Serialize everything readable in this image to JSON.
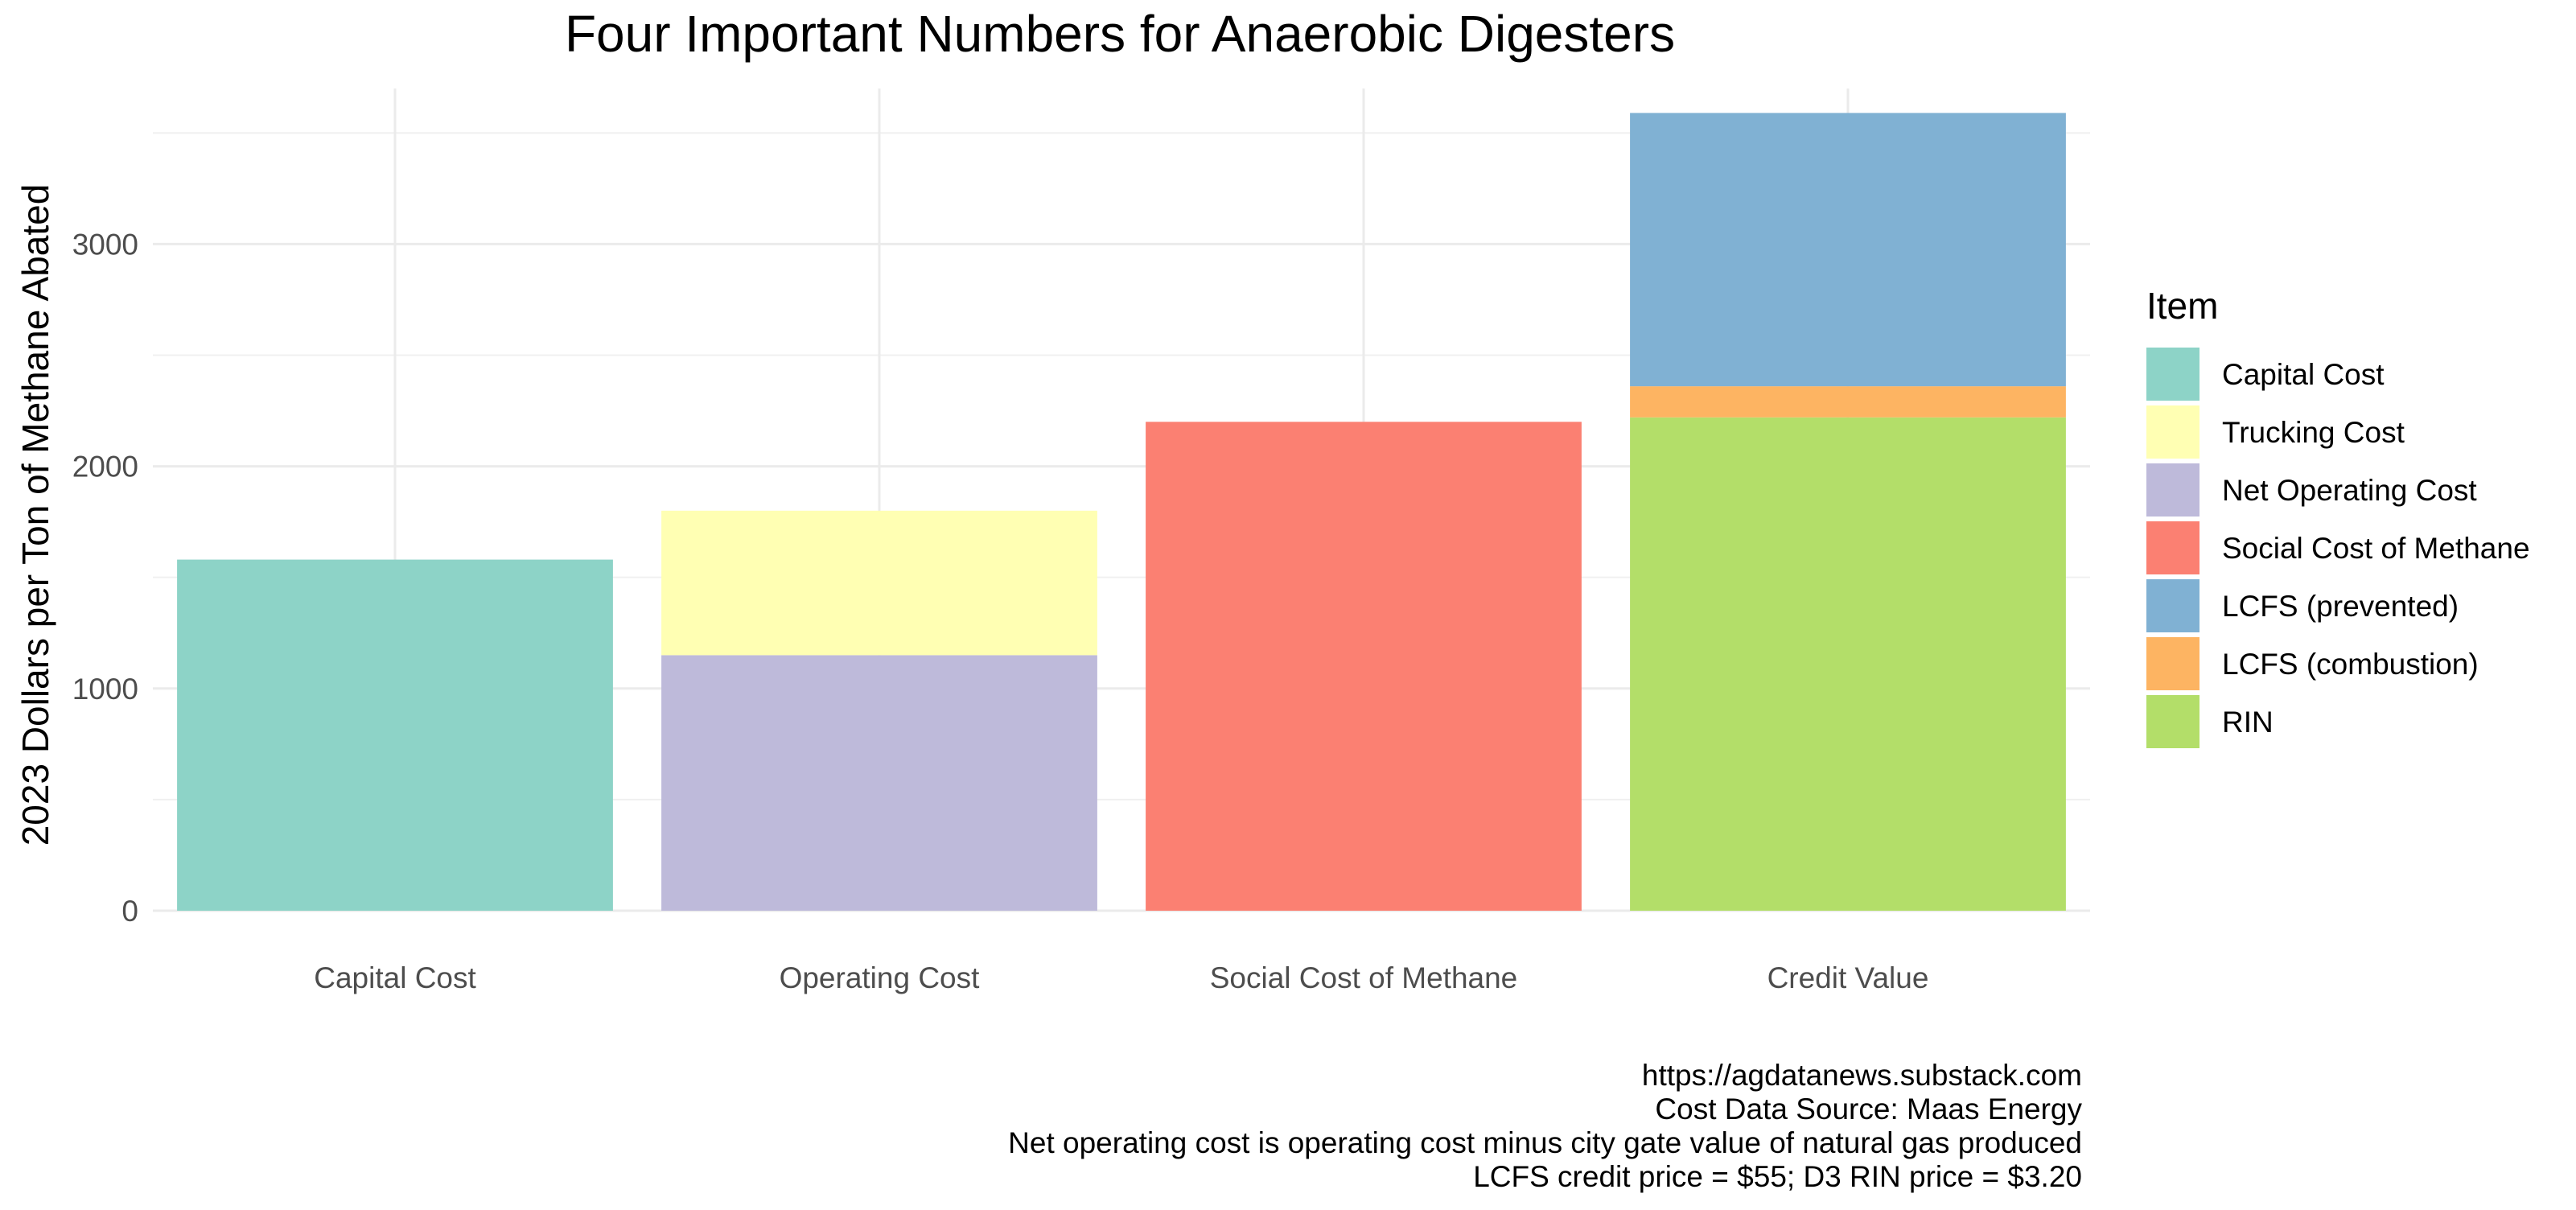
{
  "chart_data": {
    "type": "bar",
    "stacked": true,
    "title": "Four Important Numbers for Anaerobic Digesters",
    "xlabel": "",
    "ylabel": "2023 Dollars per Ton of Methane Abated",
    "categories": [
      "Capital Cost",
      "Operating Cost",
      "Social Cost of Methane",
      "Credit Value"
    ],
    "ylim": [
      0,
      3700
    ],
    "yticks": [
      0,
      1000,
      2000,
      3000
    ],
    "grid": true,
    "legend": {
      "title": "Item",
      "position": "right",
      "entries": [
        "Capital Cost",
        "Trucking Cost",
        "Net Operating Cost",
        "Social Cost of Methane",
        "LCFS (prevented)",
        "LCFS (combustion)",
        "RIN"
      ]
    },
    "series": [
      {
        "name": "Capital Cost",
        "color": "#8dd3c7",
        "values": [
          1580,
          0,
          0,
          0
        ]
      },
      {
        "name": "Net Operating Cost",
        "color": "#bebada",
        "values": [
          0,
          1150,
          0,
          0
        ]
      },
      {
        "name": "Trucking Cost",
        "color": "#ffffb3",
        "values": [
          0,
          650,
          0,
          0
        ]
      },
      {
        "name": "Social Cost of Methane",
        "color": "#fb8072",
        "values": [
          0,
          0,
          2200,
          0
        ]
      },
      {
        "name": "RIN",
        "color": "#b3de69",
        "values": [
          0,
          0,
          0,
          2220
        ]
      },
      {
        "name": "LCFS (combustion)",
        "color": "#fdb462",
        "values": [
          0,
          0,
          0,
          140
        ]
      },
      {
        "name": "LCFS (prevented)",
        "color": "#80b1d3",
        "values": [
          0,
          0,
          0,
          1230
        ]
      }
    ]
  },
  "caption": [
    "https://agdatanews.substack.com",
    "Cost Data Source: Maas Energy",
    "Net operating cost is operating cost minus city gate value of natural gas produced",
    "LCFS credit price = $55; D3 RIN price = $3.20"
  ]
}
